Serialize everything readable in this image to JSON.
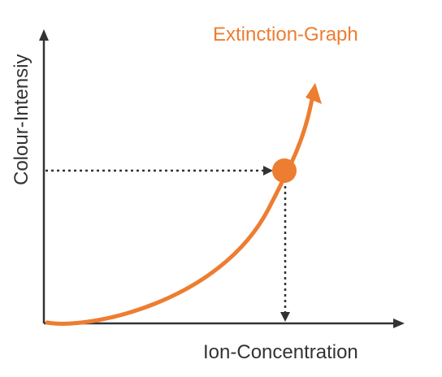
{
  "title": "Extinction-Graph",
  "x_axis_label": "Ion-Concentration",
  "y_axis_label": "Colour-Intensiy",
  "colors": {
    "curve": "#ed7d31",
    "title": "#ed7d31",
    "axis": "#333333",
    "guide": "#333333",
    "text": "#333333"
  }
}
